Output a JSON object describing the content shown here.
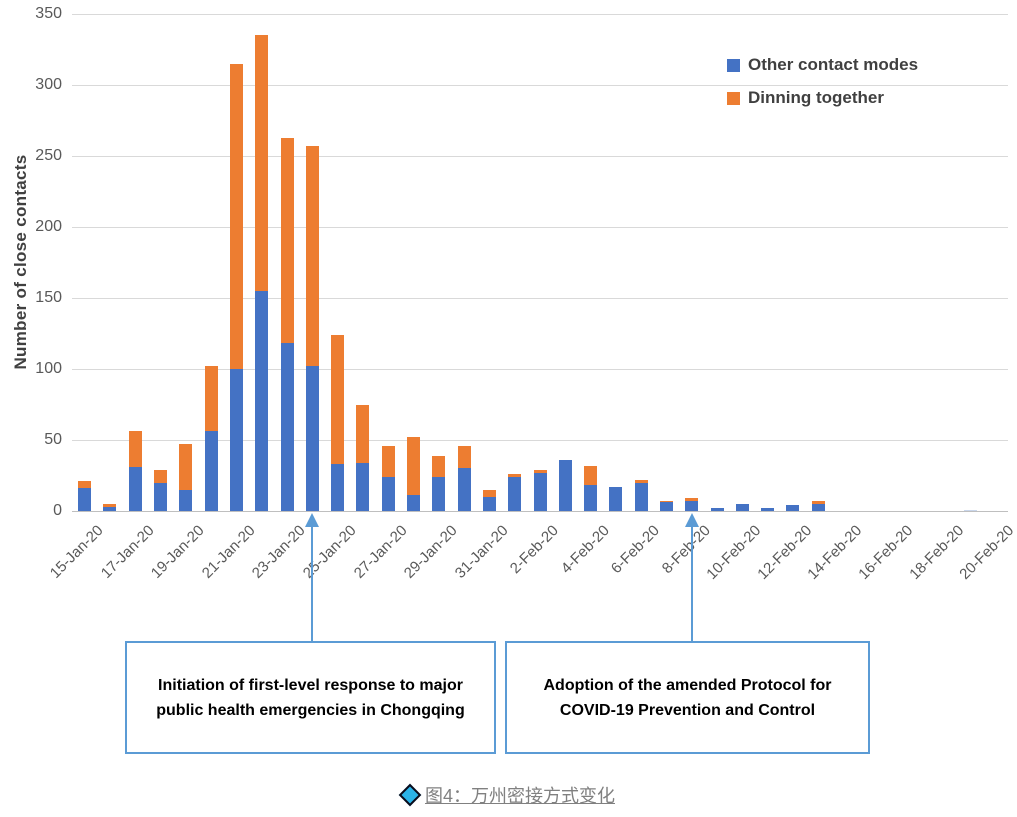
{
  "chart_data": {
    "type": "bar",
    "stacked": true,
    "ylabel": "Number of close contacts",
    "xlabel": "",
    "ylim": [
      0,
      350
    ],
    "ytick_step": 50,
    "grid": true,
    "legend_position": "top-right",
    "x_label_every": 2,
    "categories": [
      "15-Jan-20",
      "16-Jan-20",
      "17-Jan-20",
      "18-Jan-20",
      "19-Jan-20",
      "20-Jan-20",
      "21-Jan-20",
      "22-Jan-20",
      "23-Jan-20",
      "24-Jan-20",
      "25-Jan-20",
      "26-Jan-20",
      "27-Jan-20",
      "28-Jan-20",
      "29-Jan-20",
      "30-Jan-20",
      "31-Jan-20",
      "1-Feb-20",
      "2-Feb-20",
      "3-Feb-20",
      "4-Feb-20",
      "5-Feb-20",
      "6-Feb-20",
      "7-Feb-20",
      "8-Feb-20",
      "9-Feb-20",
      "10-Feb-20",
      "11-Feb-20",
      "12-Feb-20",
      "13-Feb-20",
      "14-Feb-20",
      "15-Feb-20",
      "16-Feb-20",
      "17-Feb-20",
      "18-Feb-20",
      "19-Feb-20",
      "20-Feb-20"
    ],
    "series": [
      {
        "name": "Other contact modes",
        "color": "#4472C4",
        "values": [
          16,
          3,
          31,
          20,
          15,
          56,
          100,
          155,
          118,
          102,
          33,
          34,
          24,
          11,
          24,
          30,
          10,
          24,
          27,
          36,
          18,
          17,
          20,
          6,
          7,
          2,
          5,
          2,
          4,
          5,
          0,
          0,
          0,
          0,
          0,
          1,
          0
        ]
      },
      {
        "name": "Dinning together",
        "color": "#ED7D31",
        "values": [
          5,
          2,
          25,
          9,
          32,
          46,
          215,
          180,
          145,
          155,
          91,
          41,
          22,
          41,
          15,
          16,
          5,
          2,
          2,
          0,
          14,
          0,
          2,
          1,
          2,
          0,
          0,
          0,
          0,
          2,
          0,
          0,
          0,
          0,
          0,
          0,
          0
        ]
      }
    ],
    "muted_category": "19-Feb-20",
    "muted_color": "#C9D6EB"
  },
  "annotations": [
    {
      "text": "Initiation of first-level response to major public health emergencies in Chongqing",
      "arrow_category": "24-Jan-20"
    },
    {
      "text": "Adoption of the amended Protocol for COVID-19 Prevention and Control",
      "arrow_category": "8-Feb-20"
    }
  ],
  "caption": {
    "text": "图4：万州密接方式变化"
  },
  "colors": {
    "grid": "#D9D9D9",
    "axis_line": "#BFBFBF",
    "tick_text": "#595959",
    "axis_title_text": "#404040",
    "legend_text": "#404040",
    "annotation_border": "#5B9BD5",
    "arrow": "#5B9BD5",
    "annotation_text": "#000000",
    "caption_text": "#808080",
    "caption_diamond": "#2BB3E8"
  }
}
